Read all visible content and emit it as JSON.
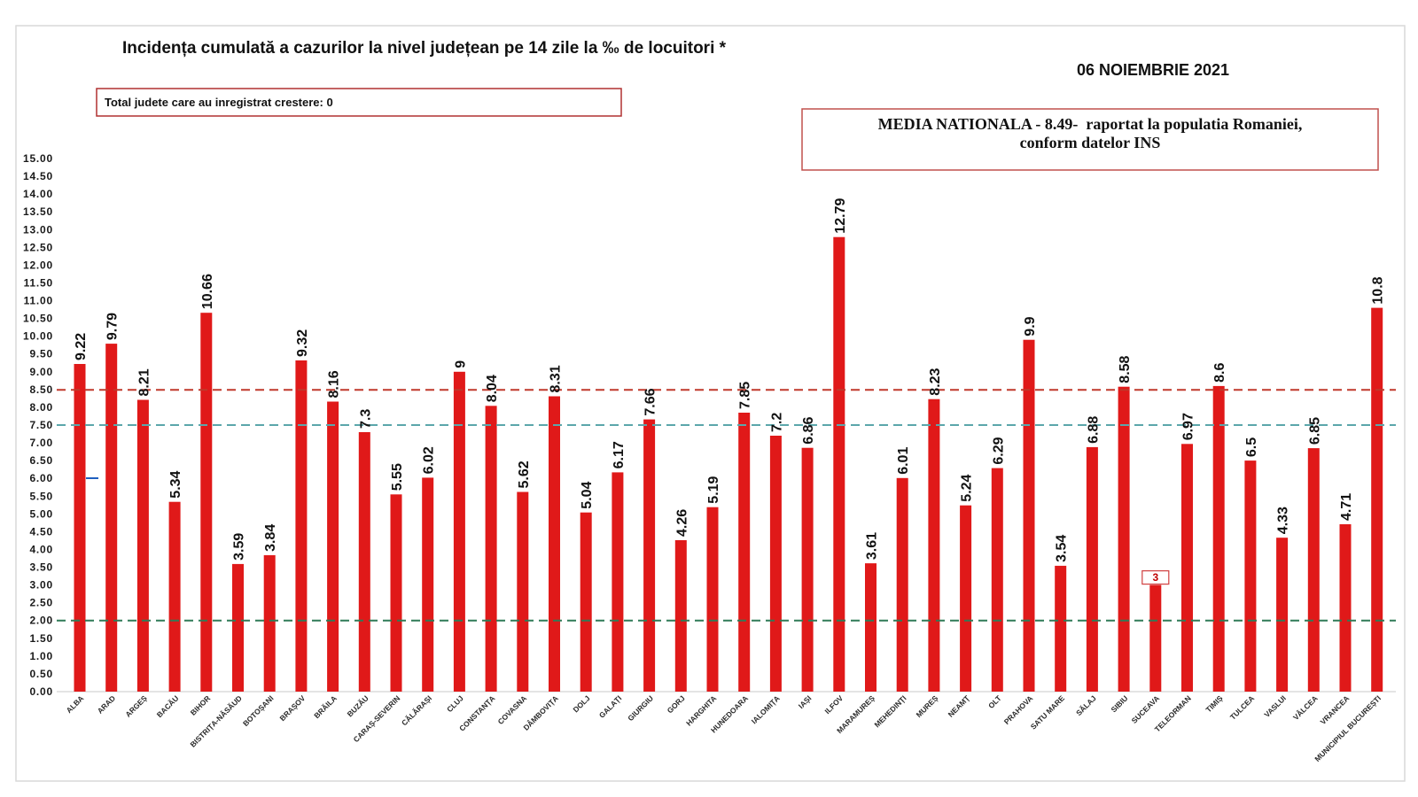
{
  "chart_data": {
    "type": "bar",
    "title": "Incidența cumulată a cazurilor la nivel județean pe 14 zile la ‰ de locuitori *",
    "date": "06 NOIEMBRIE 2021",
    "categories": [
      "ALBA",
      "ARAD",
      "ARGEȘ",
      "BACĂU",
      "BIHOR",
      "BISTRIȚA-NĂSĂUD",
      "BOTOȘANI",
      "BRAȘOV",
      "BRĂILA",
      "BUZĂU",
      "CARAȘ-SEVERIN",
      "CĂLĂRAȘI",
      "CLUJ",
      "CONSTANȚA",
      "COVASNA",
      "DÂMBOVIȚA",
      "DOLJ",
      "GALAȚI",
      "GIURGIU",
      "GORJ",
      "HARGHITA",
      "HUNEDOARA",
      "IALOMIȚA",
      "IAȘI",
      "ILFOV",
      "MARAMUREȘ",
      "MEHEDINȚI",
      "MUREȘ",
      "NEAMȚ",
      "OLT",
      "PRAHOVA",
      "SATU MARE",
      "SĂLAJ",
      "SIBIU",
      "SUCEAVA",
      "TELEORMAN",
      "TIMIȘ",
      "TULCEA",
      "VASLUI",
      "VÂLCEA",
      "VRANCEA",
      "MUNICIPIUL BUCUREȘTI"
    ],
    "values": [
      9.22,
      9.79,
      8.21,
      5.34,
      10.66,
      3.59,
      3.84,
      9.32,
      8.16,
      7.3,
      5.55,
      6.02,
      9,
      8.04,
      5.62,
      8.31,
      5.04,
      6.17,
      7.66,
      4.26,
      5.19,
      7.85,
      7.2,
      6.86,
      12.79,
      3.61,
      6.01,
      8.23,
      5.24,
      6.29,
      9.9,
      3.54,
      6.88,
      8.58,
      3,
      6.97,
      8.6,
      6.5,
      4.33,
      6.85,
      4.71,
      10.8
    ],
    "ylim": [
      0,
      15
    ],
    "yticks": [
      "0.00",
      "0.50",
      "1.00",
      "1.50",
      "2.00",
      "2.50",
      "3.00",
      "3.50",
      "4.00",
      "4.50",
      "5.00",
      "5.50",
      "6.00",
      "6.50",
      "7.00",
      "7.50",
      "8.00",
      "8.50",
      "9.00",
      "9.50",
      "10.00",
      "10.50",
      "11.00",
      "11.50",
      "12.00",
      "12.50",
      "13.00",
      "13.50",
      "14.00",
      "14.50",
      "15.00"
    ],
    "reference_lines": [
      {
        "value": 8.49,
        "color": "#c0392b",
        "style": "dashed"
      },
      {
        "value": 7.5,
        "color": "#5ba6ab",
        "style": "dashed"
      },
      {
        "value": 2.0,
        "color": "#2f7a57",
        "style": "dashed"
      }
    ],
    "bar_color": "#e01919",
    "grid": false,
    "legend": "none"
  },
  "annotations": {
    "total_growth_box": "Total judete care au inregistrat crestere: 0",
    "national_average_box": {
      "line1": "MEDIA NATIONALA - 8.49-  raportat la populatia Romaniei,",
      "line2": "conform datelor INS"
    }
  }
}
